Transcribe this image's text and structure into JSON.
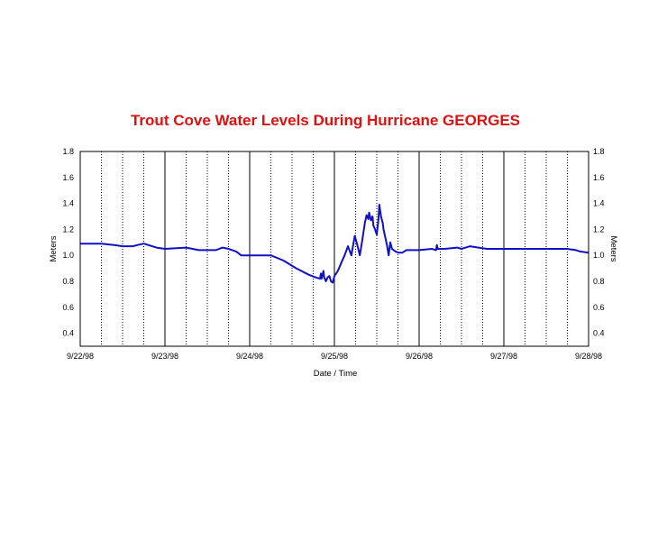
{
  "chart_data": {
    "type": "line",
    "title": "Trout Cove Water Levels During Hurricane GEORGES",
    "xlabel": "Date / Time",
    "ylabel_left": "Meters",
    "ylabel_right": "Meters",
    "xlim": [
      "9/22/98",
      "9/28/98"
    ],
    "ylim": [
      0.3,
      1.8
    ],
    "yticks": [
      0.4,
      0.6,
      0.8,
      1.0,
      1.2,
      1.4,
      1.6,
      1.8
    ],
    "ytick_labels": [
      "0.4",
      "0.6",
      "0.8",
      "1.0",
      "1.2",
      "1.4",
      "1.6",
      "1.8"
    ],
    "xticks": [
      "9/22/98",
      "9/23/98",
      "9/24/98",
      "9/25/98",
      "9/26/98",
      "9/27/98",
      "9/28/98"
    ],
    "grid": "vertical: solid at day boundaries, dotted every 6 hours",
    "colors": {
      "title": "#e01010",
      "line": "#1010c8",
      "axis": "#000000"
    },
    "series": [
      {
        "x_days_after_9_22": [
          0.0,
          0.25,
          0.4,
          0.5,
          0.6,
          0.62,
          0.68,
          0.75,
          0.9,
          1.0,
          1.25,
          1.4,
          1.5,
          1.6,
          1.68,
          1.75,
          1.84,
          1.9,
          2.0,
          2.25,
          2.4,
          2.55,
          2.7,
          2.78,
          2.83,
          2.84,
          2.85,
          2.86,
          2.87,
          2.88,
          2.9,
          2.92,
          2.94,
          2.96,
          2.98,
          3.0,
          3.04,
          3.08,
          3.12,
          3.16,
          3.2,
          3.24,
          3.27,
          3.3,
          3.33,
          3.36,
          3.38,
          3.4,
          3.41,
          3.43,
          3.45,
          3.46,
          3.48,
          3.5,
          3.52,
          3.53,
          3.55,
          3.57,
          3.58,
          3.6,
          3.62,
          3.64,
          3.66,
          3.68,
          3.7,
          3.72,
          3.76,
          3.8,
          3.85,
          3.9,
          4.0,
          4.15,
          4.2,
          4.21,
          4.22,
          4.3,
          4.45,
          4.5,
          4.55,
          4.6,
          4.7,
          4.8,
          4.95,
          5.0,
          5.25,
          5.4,
          5.5,
          5.65,
          5.75,
          5.85,
          5.9,
          6.0
        ],
        "y": [
          1.09,
          1.09,
          1.08,
          1.07,
          1.07,
          1.07,
          1.08,
          1.09,
          1.06,
          1.05,
          1.06,
          1.04,
          1.04,
          1.04,
          1.06,
          1.05,
          1.03,
          1.0,
          1.0,
          1.0,
          0.96,
          0.9,
          0.85,
          0.83,
          0.82,
          0.86,
          0.82,
          0.85,
          0.88,
          0.83,
          0.8,
          0.83,
          0.84,
          0.8,
          0.79,
          0.84,
          0.88,
          0.94,
          1.0,
          1.07,
          1.0,
          1.15,
          1.08,
          1.0,
          1.12,
          1.25,
          1.31,
          1.28,
          1.33,
          1.27,
          1.3,
          1.23,
          1.2,
          1.16,
          1.28,
          1.39,
          1.3,
          1.25,
          1.2,
          1.14,
          1.08,
          1.0,
          1.1,
          1.05,
          1.04,
          1.03,
          1.02,
          1.02,
          1.04,
          1.04,
          1.04,
          1.05,
          1.04,
          1.08,
          1.05,
          1.05,
          1.06,
          1.05,
          1.06,
          1.07,
          1.06,
          1.05,
          1.05,
          1.05,
          1.05,
          1.05,
          1.05,
          1.05,
          1.05,
          1.04,
          1.03,
          1.02
        ]
      }
    ]
  }
}
